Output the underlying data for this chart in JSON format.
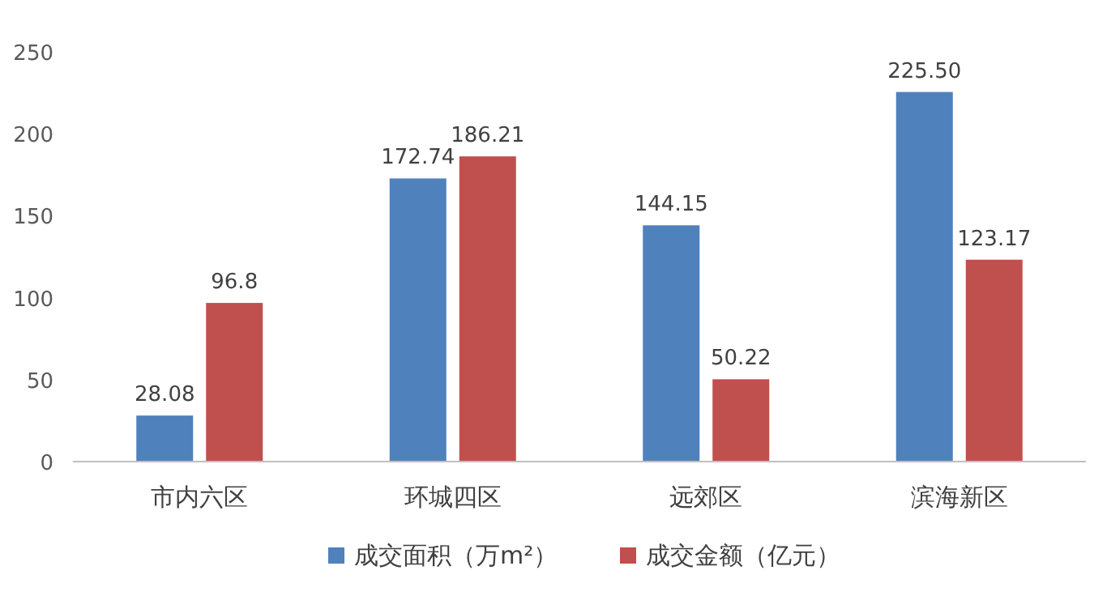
{
  "chart_data": {
    "type": "bar",
    "categories": [
      "市内六区",
      "环城四区",
      "远郊区",
      "滨海新区"
    ],
    "series": [
      {
        "name": "成交面积（万m²）",
        "color": "#4f81bd",
        "values": [
          28.08,
          172.74,
          144.15,
          225.5
        ],
        "value_labels": [
          "28.08",
          "172.74",
          "144.15",
          "225.50"
        ]
      },
      {
        "name": "成交金额（亿元）",
        "color": "#c0504d",
        "values": [
          96.8,
          186.21,
          50.22,
          123.17
        ],
        "value_labels": [
          "96.8",
          "186.21",
          "50.22",
          "123.17"
        ]
      }
    ],
    "ylim": [
      0,
      250
    ],
    "yticks": [
      0,
      50,
      100,
      150,
      200,
      250
    ],
    "legend": "bottom"
  }
}
